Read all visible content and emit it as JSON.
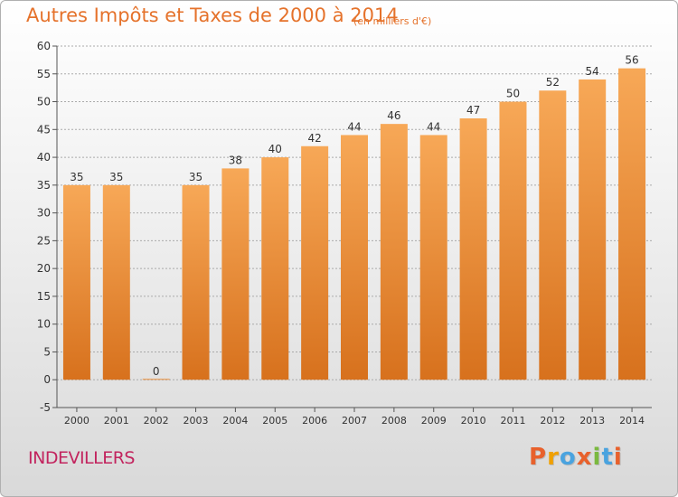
{
  "title": "Autres Impôts et Taxes de 2000 à 2014",
  "subtitle": "(en milliers d'€)",
  "place": "INDEVILLERS",
  "logo": {
    "text": "Proxiti",
    "colors": [
      "#e8612c",
      "#f0a000",
      "#4aa3df",
      "#e8612c",
      "#7bb93f",
      "#4aa3df",
      "#e8612c"
    ]
  },
  "chart_data": {
    "type": "bar",
    "categories": [
      "2000",
      "2001",
      "2002",
      "2003",
      "2004",
      "2005",
      "2006",
      "2007",
      "2008",
      "2009",
      "2010",
      "2011",
      "2012",
      "2013",
      "2014"
    ],
    "values": [
      35,
      35,
      0,
      35,
      38,
      40,
      42,
      44,
      46,
      44,
      47,
      50,
      52,
      54,
      56
    ],
    "ylim": [
      -5,
      60
    ],
    "yticks": [
      -5,
      0,
      5,
      10,
      15,
      20,
      25,
      30,
      35,
      40,
      45,
      50,
      55,
      60
    ],
    "grid": true,
    "colors": {
      "bar_top": "#f7a857",
      "bar_bottom": "#d7711d",
      "grid": "#aaaaaa",
      "axis": "#555555",
      "text": "#333333"
    }
  }
}
